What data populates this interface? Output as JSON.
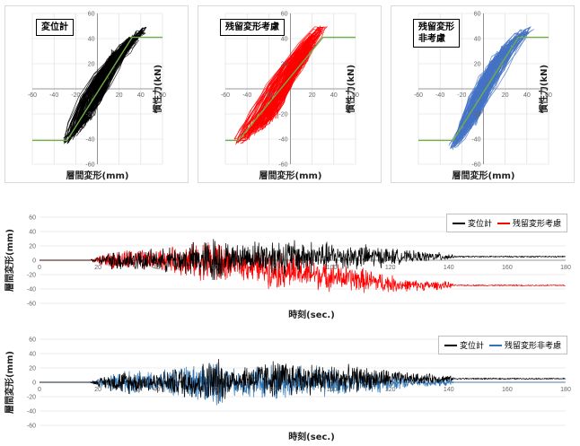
{
  "colors": {
    "black_trace": "#000000",
    "red_trace": "#ff0000",
    "blue_trace": "#2e75b6",
    "hyst_blue": "#4472c4",
    "green_line": "#70ad47",
    "grid": "#d9d9d9",
    "axis": "#7f7f7f"
  },
  "chart_data": [
    {
      "id": "hyst1",
      "type": "line",
      "title": "変位計",
      "xlabel": "層間変形(mm)",
      "ylabel": "慣性力(kN)",
      "xlim": [
        -60,
        60
      ],
      "ylim": [
        -60,
        60
      ],
      "xticks": [
        "-60",
        "-40",
        "-20",
        "0",
        "20",
        "40",
        "60"
      ],
      "yticks": [
        "60",
        "40",
        "20",
        "0",
        "-20",
        "-40",
        "-60"
      ],
      "grid": true,
      "series": [
        {
          "color": "#000000",
          "x": [
            -30,
            -20,
            -10,
            0,
            10,
            20,
            30,
            40,
            45,
            42,
            30,
            15,
            0,
            -15,
            -25,
            -30
          ],
          "y": [
            -43,
            -35,
            -22,
            -10,
            5,
            20,
            33,
            44,
            49,
            48,
            38,
            24,
            10,
            -8,
            -28,
            -43
          ]
        },
        {
          "color": "#70ad47",
          "x": [
            -60,
            -28,
            32,
            60
          ],
          "y": [
            -41,
            -41,
            41,
            41
          ]
        }
      ]
    },
    {
      "id": "hyst2",
      "type": "line",
      "title": "残留変形考慮",
      "xlabel": "層間変形(mm)",
      "ylabel": "慣性力(kN)",
      "xlim": [
        -60,
        60
      ],
      "ylim": [
        -60,
        60
      ],
      "xticks": [
        "-60",
        "-40",
        "-20",
        "0",
        "20",
        "40",
        "60"
      ],
      "yticks": [
        "60",
        "40",
        "20",
        "0",
        "-20",
        "-40",
        "-60"
      ],
      "grid": true,
      "series": [
        {
          "color": "#ff0000",
          "x": [
            -50,
            -45,
            -35,
            -20,
            -5,
            10,
            20,
            28,
            30,
            25,
            12,
            -5,
            -20,
            -35,
            -45,
            -50
          ],
          "y": [
            -43,
            -40,
            -30,
            -15,
            5,
            22,
            36,
            46,
            49,
            48,
            36,
            20,
            2,
            -18,
            -33,
            -43
          ]
        },
        {
          "color": "#70ad47",
          "x": [
            -60,
            -48,
            30,
            60
          ],
          "y": [
            -41,
            -41,
            41,
            41
          ]
        }
      ]
    },
    {
      "id": "hyst3",
      "type": "line",
      "title": "残留変形\n非考慮",
      "xlabel": "層間変形(mm)",
      "ylabel": "慣性力(kN)",
      "xlim": [
        -60,
        60
      ],
      "ylim": [
        -60,
        60
      ],
      "xticks": [
        "-60",
        "-40",
        "-20",
        "0",
        "20",
        "40",
        "60"
      ],
      "yticks": [
        "60",
        "40",
        "20",
        "0",
        "-20",
        "-40",
        "-60"
      ],
      "grid": true,
      "series": [
        {
          "color": "#4472c4",
          "x": [
            -30,
            -20,
            -10,
            0,
            10,
            20,
            30,
            40,
            43,
            38,
            25,
            12,
            0,
            -12,
            -22,
            -30
          ],
          "y": [
            -47,
            -38,
            -25,
            -10,
            5,
            20,
            33,
            45,
            49,
            47,
            36,
            22,
            8,
            -10,
            -30,
            -47
          ]
        },
        {
          "color": "#70ad47",
          "x": [
            -60,
            -28,
            32,
            60
          ],
          "y": [
            -41,
            -41,
            41,
            41
          ]
        }
      ]
    },
    {
      "id": "ts1",
      "type": "line",
      "xlabel": "時刻(sec.)",
      "ylabel": "層間変形(mm)",
      "xlim": [
        0,
        180
      ],
      "ylim": [
        -60,
        60
      ],
      "xticks": [
        "0",
        "20",
        "40",
        "60",
        "80",
        "100",
        "120",
        "140",
        "160",
        "180"
      ],
      "yticks": [
        "60",
        "40",
        "20",
        "0",
        "-20",
        "-40",
        "-60"
      ],
      "grid": true,
      "legend": "top-right",
      "series": [
        {
          "name": "変位計",
          "color": "#000000",
          "baseline": 5,
          "env": [
            [
              0,
              0
            ],
            [
              17,
              0
            ],
            [
              22,
              10
            ],
            [
              28,
              18
            ],
            [
              40,
              16
            ],
            [
              55,
              30
            ],
            [
              60,
              40
            ],
            [
              66,
              20
            ],
            [
              80,
              30
            ],
            [
              88,
              28
            ],
            [
              100,
              22
            ],
            [
              110,
              20
            ],
            [
              118,
              16
            ],
            [
              125,
              10
            ],
            [
              140,
              6
            ],
            [
              142,
              1
            ],
            [
              180,
              1
            ]
          ]
        },
        {
          "name": "残留変形考慮",
          "color": "#ff0000",
          "baseline": -35,
          "env": [
            [
              0,
              0
            ],
            [
              17,
              0
            ],
            [
              22,
              10
            ],
            [
              28,
              18
            ],
            [
              40,
              16
            ],
            [
              55,
              30
            ],
            [
              60,
              40
            ],
            [
              66,
              20
            ],
            [
              80,
              30
            ],
            [
              88,
              28
            ],
            [
              100,
              22
            ],
            [
              110,
              20
            ],
            [
              118,
              16
            ],
            [
              125,
              10
            ],
            [
              140,
              6
            ],
            [
              142,
              1
            ],
            [
              180,
              1
            ]
          ]
        }
      ]
    },
    {
      "id": "ts2",
      "type": "line",
      "xlabel": "時刻(sec.)",
      "ylabel": "層間変形(mm)",
      "xlim": [
        0,
        180
      ],
      "ylim": [
        -60,
        60
      ],
      "xticks": [
        "0",
        "20",
        "40",
        "60",
        "80",
        "100",
        "120",
        "140",
        "160",
        "180"
      ],
      "yticks": [
        "60",
        "40",
        "20",
        "0",
        "-20",
        "-40",
        "-60"
      ],
      "grid": true,
      "legend": "top-right",
      "series": [
        {
          "name": "変位計",
          "color": "#000000",
          "baseline": 5,
          "env": [
            [
              0,
              0
            ],
            [
              17,
              0
            ],
            [
              22,
              10
            ],
            [
              28,
              18
            ],
            [
              40,
              16
            ],
            [
              55,
              30
            ],
            [
              60,
              40
            ],
            [
              66,
              20
            ],
            [
              80,
              30
            ],
            [
              88,
              28
            ],
            [
              100,
              22
            ],
            [
              110,
              20
            ],
            [
              118,
              16
            ],
            [
              125,
              10
            ],
            [
              140,
              6
            ],
            [
              142,
              1
            ],
            [
              180,
              1
            ]
          ]
        },
        {
          "name": "残留変形非考慮",
          "color": "#2e75b6",
          "baseline": 0,
          "env": [
            [
              0,
              0
            ],
            [
              17,
              0
            ],
            [
              22,
              10
            ],
            [
              28,
              18
            ],
            [
              40,
              16
            ],
            [
              55,
              30
            ],
            [
              60,
              40
            ],
            [
              66,
              20
            ],
            [
              80,
              30
            ],
            [
              88,
              28
            ],
            [
              100,
              22
            ],
            [
              110,
              20
            ],
            [
              118,
              16
            ],
            [
              125,
              10
            ],
            [
              140,
              6
            ],
            [
              142,
              0
            ],
            [
              180,
              0
            ]
          ]
        }
      ]
    }
  ]
}
